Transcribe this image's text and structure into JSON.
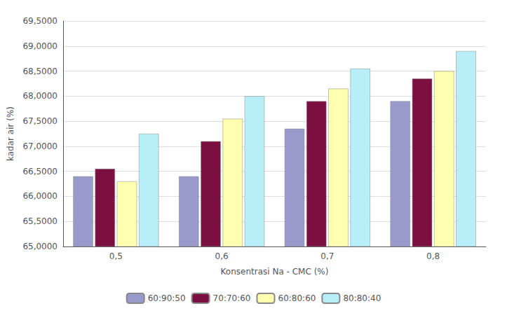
{
  "chart_data": {
    "type": "bar",
    "xlabel": "Konsentrasi Na - CMC (%)",
    "ylabel": "kadar air (%)",
    "categories": [
      "0,5",
      "0,6",
      "0,7",
      "0,8"
    ],
    "series": [
      {
        "name": "60:90:50",
        "color": "#9999CC",
        "values": [
          66.4,
          66.4,
          67.35,
          67.9
        ]
      },
      {
        "name": "70:70:60",
        "color": "#7B1040",
        "values": [
          66.55,
          67.1,
          67.9,
          68.35
        ]
      },
      {
        "name": "60:80:60",
        "color": "#FFFFB0",
        "values": [
          66.3,
          67.55,
          68.15,
          68.5
        ]
      },
      {
        "name": "80:80:40",
        "color": "#B8EEF8",
        "values": [
          67.25,
          68.0,
          68.55,
          68.9
        ]
      }
    ],
    "ylim": [
      65.0,
      69.5
    ],
    "yticks": [
      {
        "value": 65.0,
        "label": "65,0000"
      },
      {
        "value": 65.5,
        "label": "65,5000"
      },
      {
        "value": 66.0,
        "label": "66,0000"
      },
      {
        "value": 66.5,
        "label": "66,5000"
      },
      {
        "value": 67.0,
        "label": "67,0000"
      },
      {
        "value": 67.5,
        "label": "67,5000"
      },
      {
        "value": 68.0,
        "label": "68,0000"
      },
      {
        "value": 68.5,
        "label": "68,5000"
      },
      {
        "value": 69.0,
        "label": "69,0000"
      },
      {
        "value": 69.5,
        "label": "69,5000"
      }
    ],
    "grid": true,
    "legend": "bottom"
  }
}
